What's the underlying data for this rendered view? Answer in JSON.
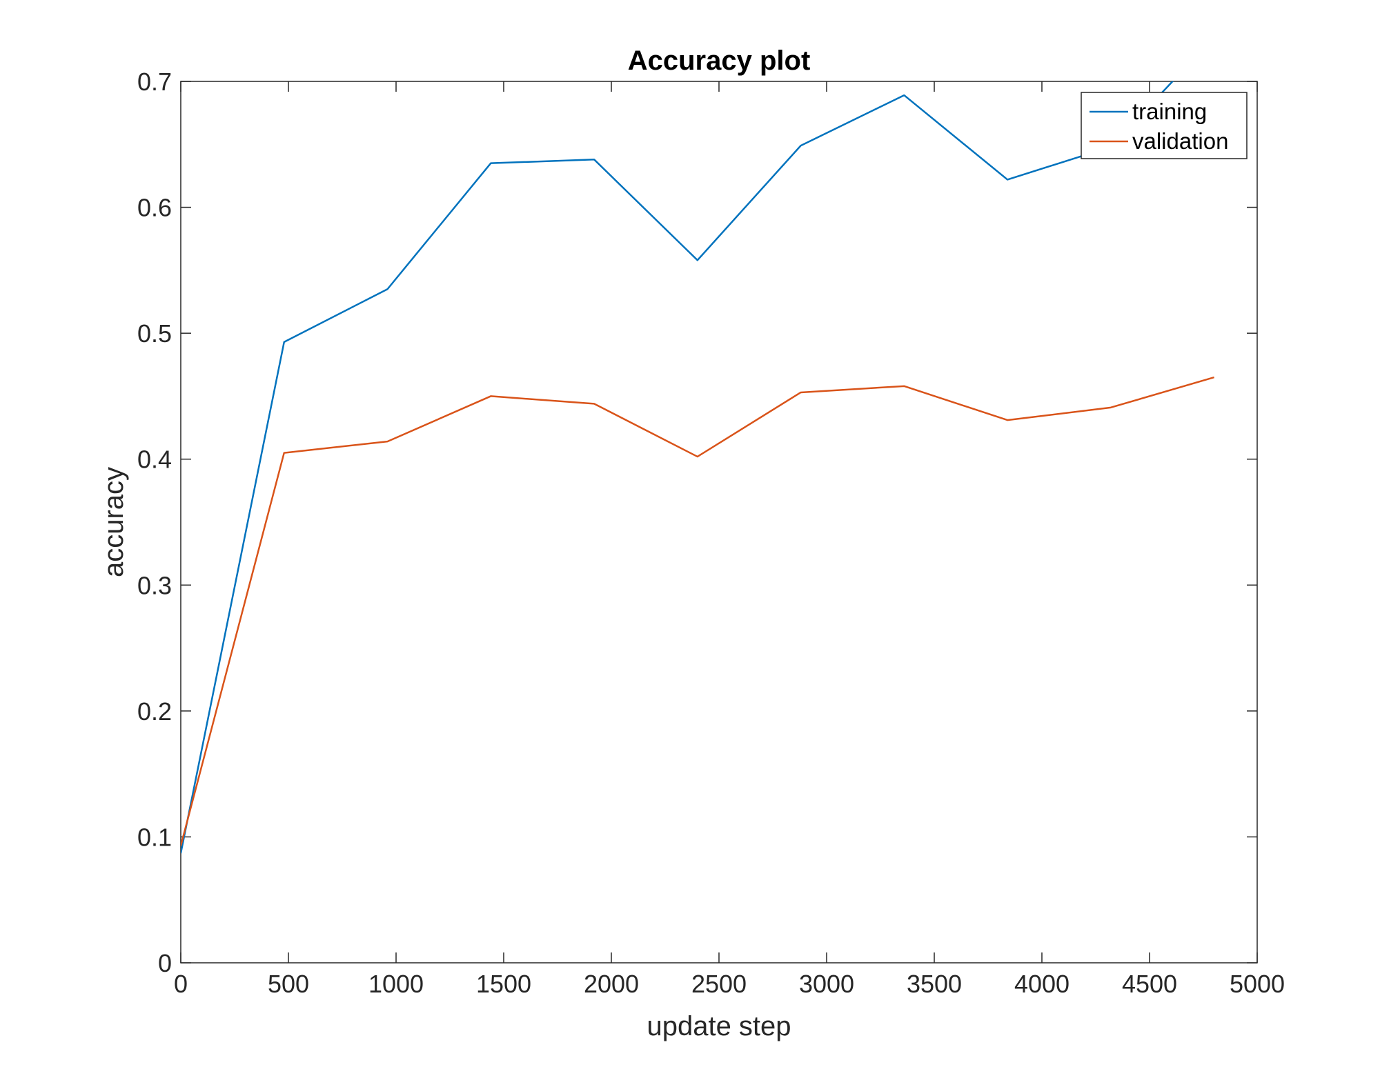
{
  "chart_data": {
    "type": "line",
    "title": "Accuracy plot",
    "xlabel": "update step",
    "ylabel": "accuracy",
    "xlim": [
      0,
      5000
    ],
    "ylim": [
      0,
      0.7
    ],
    "xticks": [
      0,
      500,
      1000,
      1500,
      2000,
      2500,
      3000,
      3500,
      4000,
      4500,
      5000
    ],
    "xtick_labels": [
      "0",
      "500",
      "1000",
      "1500",
      "2000",
      "2500",
      "3000",
      "3500",
      "4000",
      "4500",
      "5000"
    ],
    "yticks": [
      0,
      0.1,
      0.2,
      0.3,
      0.4,
      0.5,
      0.6,
      0.7
    ],
    "ytick_labels": [
      "0",
      "0.1",
      "0.2",
      "0.3",
      "0.4",
      "0.5",
      "0.6",
      "0.7"
    ],
    "grid": false,
    "legend_position": "top-right",
    "x": [
      0,
      480,
      960,
      1440,
      1920,
      2400,
      2880,
      3360,
      3840,
      4320,
      4800
    ],
    "series": [
      {
        "name": "training",
        "color": "#0072BD",
        "values": [
          0.087,
          0.493,
          0.535,
          0.635,
          0.638,
          0.558,
          0.649,
          0.689,
          0.622,
          0.648,
          0.735
        ]
      },
      {
        "name": "validation",
        "color": "#D95319",
        "values": [
          0.093,
          0.405,
          0.414,
          0.45,
          0.444,
          0.402,
          0.453,
          0.458,
          0.431,
          0.441,
          0.465
        ]
      }
    ]
  }
}
